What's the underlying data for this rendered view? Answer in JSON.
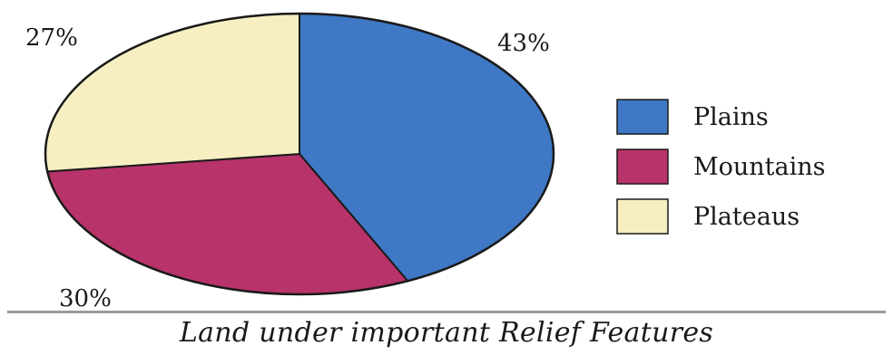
{
  "chart_data": {
    "type": "pie",
    "title": "Land under important Relief Features",
    "categories": [
      "Plains",
      "Mountains",
      "Plateaus"
    ],
    "values": [
      43,
      30,
      27
    ],
    "data_labels": [
      "43%",
      "30%",
      "27%"
    ],
    "colors": [
      "#3f78c4",
      "#b8336a",
      "#f7efc2"
    ],
    "legend": {
      "placement": "right",
      "entries": [
        "Plains",
        "Mountains",
        "Plateaus"
      ]
    },
    "start_angle": "top",
    "direction": "clockwise"
  }
}
